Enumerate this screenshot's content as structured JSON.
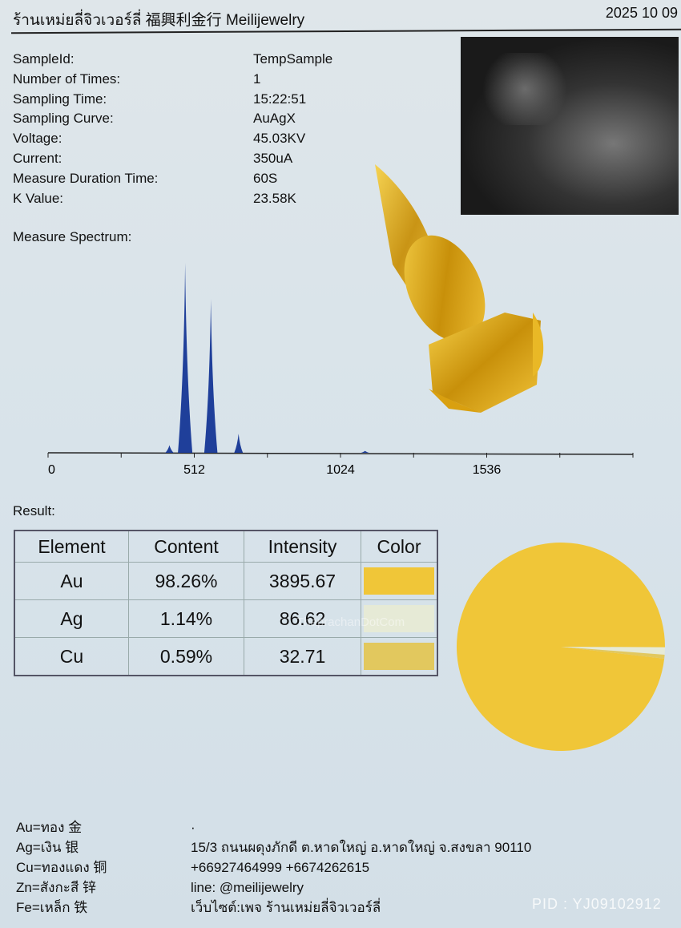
{
  "header": {
    "title": "ร้านเหม่ยลี่จิวเวอร์ลี่ 福興利金行 Meilijewelry",
    "date": "2025 10 09"
  },
  "info": [
    {
      "label": "SampleId:",
      "value": "TempSample"
    },
    {
      "label": "Number of Times:",
      "value": "1"
    },
    {
      "label": "Sampling Time:",
      "value": "15:22:51"
    },
    {
      "label": "Sampling Curve:",
      "value": "AuAgX"
    },
    {
      "label": "Voltage:",
      "value": "45.03KV"
    },
    {
      "label": "Current:",
      "value": "350uA"
    },
    {
      "label": "Measure Duration Time:",
      "value": "60S"
    },
    {
      "label": "K Value:",
      "value": "23.58K"
    }
  ],
  "spectrum": {
    "label": "Measure Spectrum:",
    "x_ticks": [
      "0",
      "512",
      "1024",
      "1536"
    ],
    "x_range": [
      0,
      2048
    ],
    "color": "#1f3f9a",
    "peaks": [
      {
        "channel": 425,
        "rel_height": 0.04
      },
      {
        "channel": 480,
        "rel_height": 1.0
      },
      {
        "channel": 570,
        "rel_height": 0.81
      },
      {
        "channel": 667,
        "rel_height": 0.1
      },
      {
        "channel": 1110,
        "rel_height": 0.01
      }
    ]
  },
  "result": {
    "label": "Result:",
    "headers": [
      "Element",
      "Content",
      "Intensity",
      "Color"
    ],
    "rows": [
      {
        "element": "Au",
        "content": "98.26%",
        "intensity": "3895.67",
        "color": "#f0c638",
        "pct": 98.26
      },
      {
        "element": "Ag",
        "content": "1.14%",
        "intensity": "86.62",
        "color": "#e6ead6",
        "pct": 1.14
      },
      {
        "element": "Cu",
        "content": "0.59%",
        "intensity": "32.71",
        "color": "#e2c85e",
        "pct": 0.59
      }
    ],
    "watermark": "ThaprachanDotCom"
  },
  "legend": [
    "Au=ทอง 金",
    "Ag=เงิน 银",
    "Cu=ทองแดง 铜",
    "Zn=สังกะสี 锌",
    "Fe=เหล็ก 铁"
  ],
  "contact": {
    "dot": "·",
    "address": "15/3 ถนนผดุงภักดี ต.หาดใหญ่ อ.หาดใหญ่ จ.สงขลา 90110",
    "phones": "+66927464999   +6674262615",
    "line": "line: @meilijewelry",
    "website": "เว็บไซต์:เพจ ร้านเหม่ยลี่จิวเวอร์ลี่"
  },
  "pid": "PID : YJ09102912"
}
